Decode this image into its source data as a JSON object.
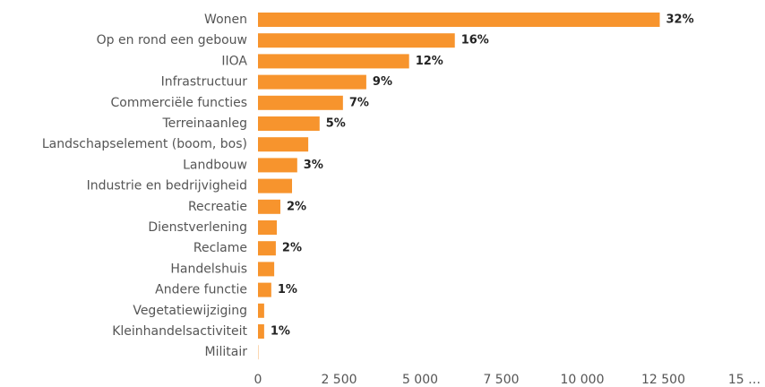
{
  "chart_data": {
    "type": "hbar",
    "categories": [
      "Wonen",
      "Op en rond een gebouw",
      "IIOA",
      "Infrastructuur",
      "Commerciële functies",
      "Terreinaanleg",
      "Landschapselement (boom, bos)",
      "Landbouw",
      "Industrie en bedrijvigheid",
      "Recreatie",
      "Dienstverlening",
      "Reclame",
      "Handelshuis",
      "Andere functie",
      "Vegetatiewijziging",
      "Kleinhandelsactiviteit",
      "Militair"
    ],
    "values": [
      12390,
      6070,
      4660,
      3340,
      2620,
      1900,
      1550,
      1210,
      1050,
      690,
      580,
      550,
      500,
      410,
      190,
      190,
      10
    ],
    "percent_labels": [
      "32%",
      "16%",
      "12%",
      "9%",
      "7%",
      "5%",
      null,
      "3%",
      null,
      "2%",
      null,
      "2%",
      null,
      "1%",
      null,
      "1%",
      null
    ],
    "color": "#f7942d",
    "xlim": [
      0,
      15000
    ],
    "xticks": [
      0,
      {
        "value": 2500,
        "label": "2 500"
      },
      {
        "value": 5000,
        "label": "5 000"
      },
      {
        "value": 7500,
        "label": "7 500"
      },
      {
        "value": 10000,
        "label": "10 000"
      },
      {
        "value": 12500,
        "label": "12 500"
      },
      {
        "value": 15000,
        "label": "15 …"
      }
    ],
    "grid": false
  }
}
